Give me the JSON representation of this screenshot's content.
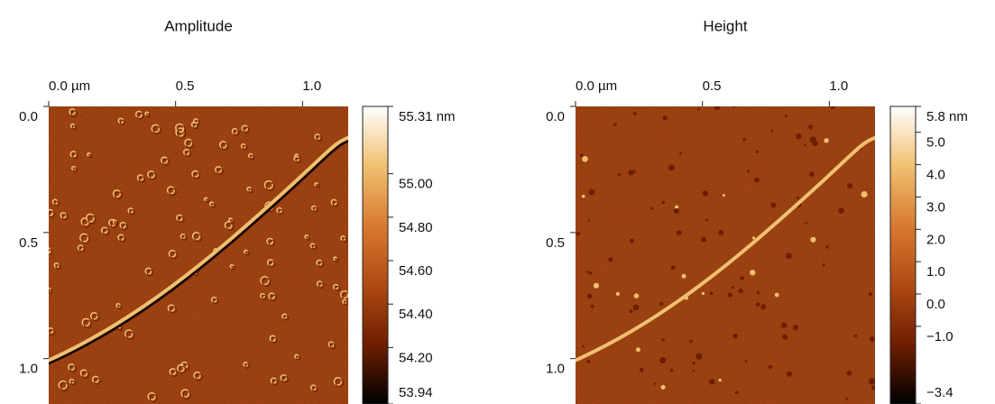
{
  "chart_data": [
    {
      "type": "image",
      "title": "Amplitude",
      "xlim": [
        0,
        1.18
      ],
      "ylim": [
        0,
        1.18
      ],
      "xticks": [
        {
          "value": 0,
          "label": "0.0 µm"
        },
        0.5,
        {
          "value": 1,
          "label": "1.0"
        }
      ],
      "yticks": [
        {
          "value": 0,
          "label": "0.0"
        },
        0.5,
        {
          "value": 1,
          "label": "1.0"
        }
      ],
      "zlim": [
        53.94,
        55.31
      ],
      "zticks": [
        {
          "value": 55.31,
          "label": "55.31 nm"
        },
        {
          "value": 55,
          "label": "55.00"
        },
        {
          "value": 54.8,
          "label": "54.80"
        },
        {
          "value": 54.6,
          "label": "54.60"
        },
        {
          "value": 54.4,
          "label": "54.40"
        },
        {
          "value": 54.2,
          "label": "54.20"
        },
        53.94
      ],
      "colormap": [
        "#000000",
        "#6e1e00",
        "#b04a14",
        "#d87a30",
        "#f0c070",
        "#ffffff"
      ]
    },
    {
      "type": "image",
      "title": "Height",
      "xlim": [
        0,
        1.18
      ],
      "ylim": [
        0,
        1.18
      ],
      "xticks": [
        {
          "value": 0,
          "label": "0.0 µm"
        },
        0.5,
        {
          "value": 1,
          "label": "1.0"
        }
      ],
      "yticks": [
        {
          "value": 0,
          "label": "0.0"
        },
        0.5,
        {
          "value": 1,
          "label": "1.0"
        }
      ],
      "zlim": [
        -3.4,
        5.8
      ],
      "zticks": [
        {
          "value": 5.8,
          "label": "5.8 nm"
        },
        {
          "value": 5,
          "label": "5.0"
        },
        {
          "value": 4,
          "label": "4.0"
        },
        {
          "value": 3,
          "label": "3.0"
        },
        {
          "value": 2,
          "label": "2.0"
        },
        {
          "value": 1,
          "label": "1.0"
        },
        {
          "value": 0,
          "label": "0.0"
        },
        {
          "value": -1,
          "label": "−1.0"
        },
        {
          "value": -3.4,
          "label": "−3.4"
        }
      ],
      "colormap": [
        "#000000",
        "#6e1e00",
        "#b04a14",
        "#d87a30",
        "#f0c070",
        "#ffffff"
      ]
    }
  ]
}
